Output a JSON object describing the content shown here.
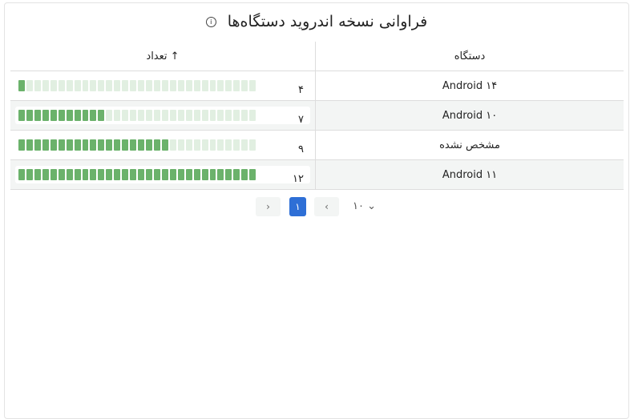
{
  "title": "فراوانی نسخه اندروید دستگاه‌ها",
  "info_icon": "info-icon",
  "table": {
    "headers": {
      "device": "دستگاه",
      "count": "تعداد",
      "sort_icon": "↑"
    },
    "segments_total": 30,
    "rows": [
      {
        "device": "Android ۱۴",
        "count": "۴",
        "filled_segments": 1
      },
      {
        "device": "Android ۱۰",
        "count": "۷",
        "filled_segments": 11
      },
      {
        "device": "مشخص نشده",
        "count": "۹",
        "filled_segments": 19
      },
      {
        "device": "Android ۱۱",
        "count": "۱۲",
        "filled_segments": 30
      }
    ]
  },
  "pagination": {
    "prev": "‹",
    "next": "›",
    "current_page": "۱",
    "page_size": "۱۰",
    "page_size_icon": "⌄"
  },
  "colors": {
    "bar_filled": "#6bb26b",
    "bar_empty": "#e1efe1",
    "active_page": "#2e6fd6"
  }
}
